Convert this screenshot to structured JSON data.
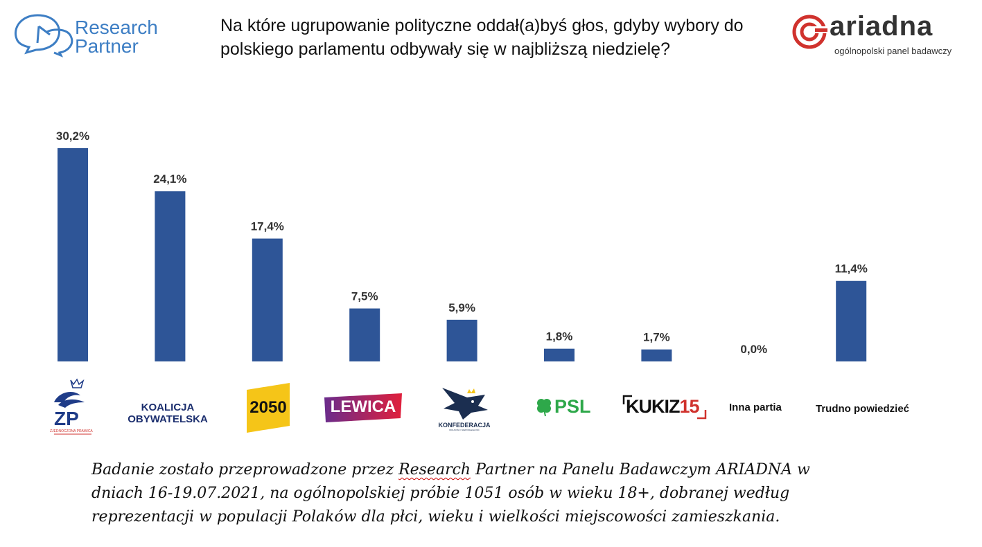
{
  "header": {
    "research_partner_line1": "Research",
    "research_partner_line2": "Partner",
    "title": "Na które ugrupowanie polityczne oddał(a)byś głos, gdyby wybory do polskiego parlamentu odbywały się w najbliższą niedzielę?",
    "ariadna_word": "ariadna",
    "ariadna_sub": "ogólnopolski panel badawczy"
  },
  "logos": {
    "zp_abbr": "ZP",
    "zp_sub": "ZJEDNOCZONA PRAWICA",
    "ko_line1": "KOALICJA",
    "ko_line2": "OBYWATELSKA",
    "p2050": "2050",
    "lewica": "LEWICA",
    "konf": "KONFEDERACJA",
    "konf_sub": "WOLNOŚĆ I NIEPODLEGŁOŚĆ",
    "psl": "PSL",
    "kukiz": "KUKIZ",
    "kukiz_num": "15"
  },
  "chart_data": {
    "type": "bar",
    "title": "Na które ugrupowanie polityczne oddał(a)byś głos, gdyby wybory do polskiego parlamentu odbywały się w najbliższą niedzielę?",
    "categories": [
      "Zjednoczona Prawica",
      "Koalicja Obywatelska",
      "Polska 2050",
      "Lewica",
      "Konfederacja",
      "PSL",
      "Kukiz'15",
      "Inna partia",
      "Trudno powiedzieć"
    ],
    "values": [
      30.2,
      24.1,
      17.4,
      7.5,
      5.9,
      1.8,
      1.7,
      0.0,
      11.4
    ],
    "data_labels": [
      "30,2%",
      "24,1%",
      "17,4%",
      "7,5%",
      "5,9%",
      "1,8%",
      "1,7%",
      "0,0%",
      "11,4%"
    ],
    "text_category_labels": {
      "inna": "Inna partia",
      "trudno": "Trudno powiedzieć"
    },
    "bar_color": "#2e5597",
    "xlabel": "",
    "ylabel": "",
    "ylim": [
      0,
      30.2
    ],
    "grid": false,
    "legend": "none"
  },
  "footer": {
    "part1": "Badanie zostało przeprowadzone przez ",
    "underlined": "Research",
    "part2": " Partner na Panelu Badawczym ARIADNA w dniach 16-19.07.2021, na ogólnopolskiej próbie 1051 osób w wieku 18+, dobranej według reprezentacji w populacji Polaków dla płci, wieku i wielkości miejscowości zamieszkania."
  },
  "colors": {
    "bar": "#2e5597",
    "research_blue": "#3d7ec4",
    "ariadna_red": "#d0322d"
  }
}
